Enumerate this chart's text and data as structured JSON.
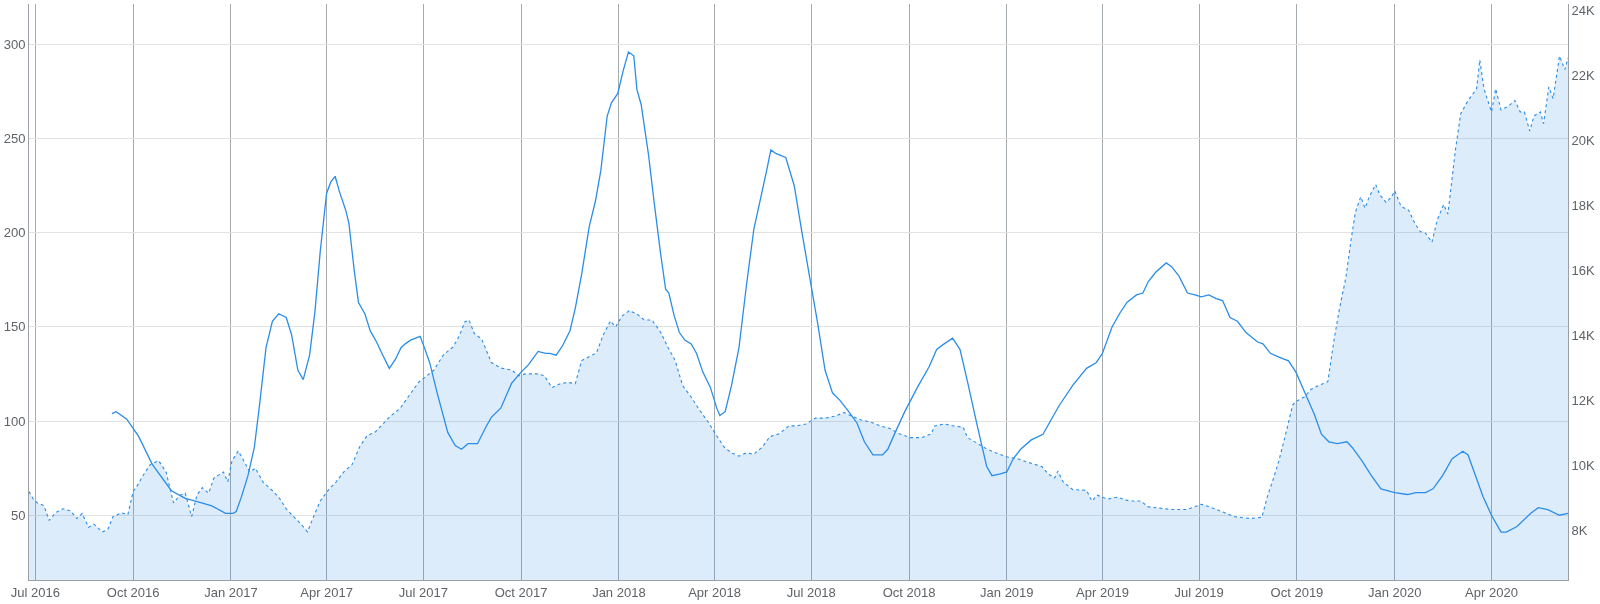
{
  "chart_data": {
    "type": "line",
    "xlim": [
      "2016-06-25",
      "2020-06-12"
    ],
    "xticks": [
      {
        "value": "2016-07-01",
        "label": "Jul 2016"
      },
      {
        "value": "2016-10-01",
        "label": "Oct 2016"
      },
      {
        "value": "2017-01-01",
        "label": "Jan 2017"
      },
      {
        "value": "2017-04-01",
        "label": "Apr 2017"
      },
      {
        "value": "2017-07-01",
        "label": "Jul 2017"
      },
      {
        "value": "2017-10-01",
        "label": "Oct 2017"
      },
      {
        "value": "2018-01-01",
        "label": "Jan 2018"
      },
      {
        "value": "2018-04-01",
        "label": "Apr 2018"
      },
      {
        "value": "2018-07-01",
        "label": "Jul 2018"
      },
      {
        "value": "2018-10-01",
        "label": "Oct 2018"
      },
      {
        "value": "2019-01-01",
        "label": "Jan 2019"
      },
      {
        "value": "2019-04-01",
        "label": "Apr 2019"
      },
      {
        "value": "2019-07-01",
        "label": "Jul 2019"
      },
      {
        "value": "2019-10-01",
        "label": "Oct 2019"
      },
      {
        "value": "2020-01-01",
        "label": "Jan 2020"
      },
      {
        "value": "2020-04-01",
        "label": "Apr 2020"
      }
    ],
    "ylim": [
      15.6,
      321.5
    ],
    "yticks": [
      50,
      100,
      150,
      200,
      250,
      300
    ],
    "y2lim": [
      6470,
      24190
    ],
    "y2ticks": [
      {
        "value": 8000,
        "label": "8K"
      },
      {
        "value": 10000,
        "label": "10K"
      },
      {
        "value": 12000,
        "label": "12K"
      },
      {
        "value": 14000,
        "label": "14K"
      },
      {
        "value": 16000,
        "label": "16K"
      },
      {
        "value": 18000,
        "label": "18K"
      },
      {
        "value": 20000,
        "label": "20K"
      },
      {
        "value": 22000,
        "label": "22K"
      },
      {
        "value": 24000,
        "label": "24K"
      }
    ],
    "grid": true,
    "series": [
      {
        "type": "line",
        "color": "#2b8de8",
        "line_style": "solid",
        "x": [
          "2016-09-11",
          "2016-09-15",
          "2016-09-25",
          "2016-10-06",
          "2016-10-19",
          "2016-11-06",
          "2016-11-19",
          "2016-12-02",
          "2016-12-14",
          "2016-12-27",
          "2017-01-03",
          "2017-01-06",
          "2017-01-11",
          "2017-01-17",
          "2017-01-23",
          "2017-01-28",
          "2017-02-03",
          "2017-02-09",
          "2017-02-15",
          "2017-02-22",
          "2017-02-27",
          "2017-03-05",
          "2017-03-10",
          "2017-03-16",
          "2017-03-21",
          "2017-03-26",
          "2017-04-01",
          "2017-04-05",
          "2017-04-09",
          "2017-04-13",
          "2017-04-19",
          "2017-04-22",
          "2017-04-27",
          "2017-05-01",
          "2017-05-07",
          "2017-05-12",
          "2017-05-18",
          "2017-05-23",
          "2017-05-30",
          "2017-06-05",
          "2017-06-10",
          "2017-06-14",
          "2017-06-19",
          "2017-06-28",
          "2017-07-02",
          "2017-07-07",
          "2017-07-14",
          "2017-07-24",
          "2017-07-31",
          "2017-08-06",
          "2017-08-12",
          "2017-08-21",
          "2017-08-29",
          "2017-09-03",
          "2017-09-12",
          "2017-09-22",
          "2017-10-01",
          "2017-10-08",
          "2017-10-17",
          "2017-10-24",
          "2017-10-28",
          "2017-11-03",
          "2017-11-09",
          "2017-11-16",
          "2017-11-21",
          "2017-11-27",
          "2017-12-04",
          "2017-12-10",
          "2017-12-15",
          "2017-12-21",
          "2017-12-25",
          "2017-12-31",
          "2018-01-05",
          "2018-01-10",
          "2018-01-15",
          "2018-01-18",
          "2018-01-22",
          "2018-01-29",
          "2018-02-03",
          "2018-02-09",
          "2018-02-14",
          "2018-02-17",
          "2018-02-22",
          "2018-02-27",
          "2018-03-04",
          "2018-03-10",
          "2018-03-15",
          "2018-03-21",
          "2018-03-28",
          "2018-04-03",
          "2018-04-06",
          "2018-04-11",
          "2018-04-17",
          "2018-04-24",
          "2018-05-01",
          "2018-05-08",
          "2018-05-15",
          "2018-05-20",
          "2018-05-24",
          "2018-05-29",
          "2018-06-07",
          "2018-06-15",
          "2018-06-22",
          "2018-06-29",
          "2018-07-07",
          "2018-07-14",
          "2018-07-21",
          "2018-07-28",
          "2018-08-04",
          "2018-08-13",
          "2018-08-20",
          "2018-08-28",
          "2018-09-06",
          "2018-09-11",
          "2018-09-18",
          "2018-09-27",
          "2018-10-09",
          "2018-10-20",
          "2018-10-27",
          "2018-11-03",
          "2018-11-11",
          "2018-11-18",
          "2018-11-25",
          "2018-12-04",
          "2018-12-13",
          "2018-12-18",
          "2018-12-26",
          "2019-01-01",
          "2019-01-07",
          "2019-01-14",
          "2019-01-24",
          "2019-02-04",
          "2019-02-19",
          "2019-03-04",
          "2019-03-17",
          "2019-03-26",
          "2019-04-01",
          "2019-04-10",
          "2019-04-17",
          "2019-04-24",
          "2019-05-03",
          "2019-05-09",
          "2019-05-14",
          "2019-05-21",
          "2019-05-31",
          "2019-06-05",
          "2019-06-12",
          "2019-06-20",
          "2019-06-27",
          "2019-07-03",
          "2019-07-10",
          "2019-07-17",
          "2019-07-23",
          "2019-07-30",
          "2019-08-06",
          "2019-08-14",
          "2019-08-25",
          "2019-08-30",
          "2019-09-06",
          "2019-09-14",
          "2019-09-23",
          "2019-09-30",
          "2019-10-10",
          "2019-10-17",
          "2019-10-24",
          "2019-10-31",
          "2019-11-08",
          "2019-11-17",
          "2019-11-22",
          "2019-12-01",
          "2019-12-10",
          "2019-12-19",
          "2020-01-01",
          "2020-01-13",
          "2020-01-21",
          "2020-01-30",
          "2020-02-06",
          "2020-02-15",
          "2020-02-24",
          "2020-03-05",
          "2020-03-10",
          "2020-03-17",
          "2020-03-24",
          "2020-04-01",
          "2020-04-10",
          "2020-04-15",
          "2020-04-25",
          "2020-05-08",
          "2020-05-15",
          "2020-05-24",
          "2020-06-04",
          "2020-06-12"
        ],
        "values": [
          104,
          105,
          101,
          92,
          77,
          63,
          59,
          57,
          55,
          51,
          51,
          52,
          60,
          71,
          86,
          109,
          139,
          153,
          157,
          155,
          146,
          127,
          122,
          135,
          158,
          190,
          221,
          227,
          230,
          222,
          212,
          205,
          180,
          163,
          157,
          148,
          142,
          136,
          128,
          133,
          139,
          141,
          143,
          145,
          139,
          131,
          115,
          94,
          87,
          85,
          88,
          88,
          97,
          102,
          107,
          120,
          126,
          130,
          137,
          136,
          136,
          135,
          140,
          148,
          160,
          178,
          203,
          217,
          233,
          262,
          269,
          274,
          286,
          296,
          294,
          276,
          268,
          241,
          217,
          190,
          170,
          168,
          156,
          147,
          143,
          141,
          136,
          126,
          118,
          107,
          103,
          105,
          119,
          139,
          172,
          202,
          220,
          233,
          244,
          242,
          240,
          225,
          201,
          178,
          152,
          127,
          115,
          111,
          106,
          99,
          89,
          82,
          82,
          85,
          94,
          105,
          118,
          129,
          138,
          141,
          144,
          138,
          121,
          98,
          76,
          71,
          72,
          73,
          80,
          85,
          90,
          93,
          108,
          119,
          128,
          131,
          136,
          150,
          157,
          163,
          167,
          168,
          174,
          179,
          184,
          182,
          177,
          168,
          167,
          166,
          167,
          165,
          164,
          155,
          153,
          147,
          142,
          141,
          136,
          134,
          132,
          126,
          113,
          104,
          93,
          89,
          88,
          89,
          86,
          79,
          71,
          64,
          62,
          61,
          62,
          62,
          64,
          71,
          80,
          84,
          82,
          71,
          60,
          50,
          41,
          41,
          44,
          51,
          54,
          53,
          50,
          51
        ]
      },
      {
        "type": "area",
        "axis": "y2",
        "color": "#2b8de8",
        "line_style": "dotted",
        "x": [
          "2016-06-25",
          "2016-06-29",
          "2016-07-03",
          "2016-07-09",
          "2016-07-14",
          "2016-07-20",
          "2016-07-27",
          "2016-08-03",
          "2016-08-09",
          "2016-08-14",
          "2016-08-20",
          "2016-08-25",
          "2016-09-02",
          "2016-09-07",
          "2016-09-12",
          "2016-09-20",
          "2016-09-26",
          "2016-10-01",
          "2016-10-06",
          "2016-10-10",
          "2016-10-17",
          "2016-10-25",
          "2016-11-01",
          "2016-11-08",
          "2016-11-14",
          "2016-11-19",
          "2016-11-25",
          "2016-11-30",
          "2016-12-05",
          "2016-12-11",
          "2016-12-16",
          "2016-12-25",
          "2016-12-29",
          "2017-01-02",
          "2017-01-08",
          "2017-01-13",
          "2017-01-19",
          "2017-01-24",
          "2017-01-31",
          "2017-02-08",
          "2017-02-15",
          "2017-02-22",
          "2017-03-01",
          "2017-03-08",
          "2017-03-14",
          "2017-03-19",
          "2017-03-26",
          "2017-04-03",
          "2017-04-10",
          "2017-04-17",
          "2017-04-25",
          "2017-05-02",
          "2017-05-09",
          "2017-05-17",
          "2017-05-24",
          "2017-05-31",
          "2017-06-09",
          "2017-06-18",
          "2017-06-27",
          "2017-07-02",
          "2017-07-11",
          "2017-07-20",
          "2017-07-29",
          "2017-08-04",
          "2017-08-09",
          "2017-08-13",
          "2017-08-18",
          "2017-08-25",
          "2017-09-03",
          "2017-09-12",
          "2017-09-22",
          "2017-09-29",
          "2017-10-05",
          "2017-10-17",
          "2017-10-23",
          "2017-10-30",
          "2017-11-07",
          "2017-11-14",
          "2017-11-21",
          "2017-11-27",
          "2017-12-04",
          "2017-12-11",
          "2017-12-17",
          "2017-12-24",
          "2017-12-29",
          "2018-01-04",
          "2018-01-11",
          "2018-01-18",
          "2018-01-25",
          "2018-02-01",
          "2018-02-09",
          "2018-02-16",
          "2018-02-23",
          "2018-03-02",
          "2018-03-10",
          "2018-03-17",
          "2018-03-26",
          "2018-04-03",
          "2018-04-10",
          "2018-04-17",
          "2018-04-24",
          "2018-05-01",
          "2018-05-08",
          "2018-05-16",
          "2018-05-23",
          "2018-06-01",
          "2018-06-10",
          "2018-06-17",
          "2018-06-26",
          "2018-07-05",
          "2018-07-14",
          "2018-07-23",
          "2018-08-01",
          "2018-08-08",
          "2018-08-17",
          "2018-08-26",
          "2018-09-04",
          "2018-09-13",
          "2018-09-22",
          "2018-10-02",
          "2018-10-13",
          "2018-10-22",
          "2018-10-25",
          "2018-11-03",
          "2018-11-12",
          "2018-11-21",
          "2018-11-25",
          "2018-12-04",
          "2018-12-13",
          "2018-12-22",
          "2019-01-01",
          "2019-01-11",
          "2019-01-22",
          "2019-02-03",
          "2019-02-09",
          "2019-02-15",
          "2019-02-18",
          "2019-02-23",
          "2019-03-04",
          "2019-03-17",
          "2019-03-22",
          "2019-03-27",
          "2019-04-06",
          "2019-04-15",
          "2019-04-26",
          "2019-05-07",
          "2019-05-14",
          "2019-05-25",
          "2019-06-05",
          "2019-06-20",
          "2019-07-03",
          "2019-07-14",
          "2019-07-25",
          "2019-08-03",
          "2019-08-18",
          "2019-08-29",
          "2019-09-03",
          "2019-09-09",
          "2019-09-14",
          "2019-09-20",
          "2019-09-27",
          "2019-10-01",
          "2019-10-08",
          "2019-10-14",
          "2019-10-21",
          "2019-10-30",
          "2019-11-05",
          "2019-11-10",
          "2019-11-16",
          "2019-11-21",
          "2019-11-25",
          "2019-11-30",
          "2019-12-04",
          "2019-12-08",
          "2019-12-14",
          "2019-12-18",
          "2019-12-24",
          "2019-12-29",
          "2020-01-01",
          "2020-01-07",
          "2020-01-14",
          "2020-01-20",
          "2020-01-25",
          "2020-01-30",
          "2020-02-05",
          "2020-02-10",
          "2020-02-16",
          "2020-02-20",
          "2020-02-27",
          "2020-03-03",
          "2020-03-10",
          "2020-03-18",
          "2020-03-21",
          "2020-03-25",
          "2020-04-01",
          "2020-04-05",
          "2020-04-10",
          "2020-04-17",
          "2020-04-23",
          "2020-04-28",
          "2020-05-02",
          "2020-05-07",
          "2020-05-11",
          "2020-05-17",
          "2020-05-20",
          "2020-05-25",
          "2020-05-29",
          "2020-06-04",
          "2020-06-09",
          "2020-06-12"
        ],
        "values": [
          9190,
          8960,
          8840,
          8760,
          8300,
          8540,
          8660,
          8600,
          8360,
          8520,
          8090,
          8190,
          7950,
          8010,
          8420,
          8540,
          8480,
          9190,
          9430,
          9670,
          10020,
          10140,
          9790,
          8840,
          9080,
          9140,
          8420,
          9080,
          9310,
          9140,
          9610,
          9790,
          9490,
          10140,
          10440,
          10140,
          9790,
          9910,
          9490,
          9250,
          9020,
          8660,
          8420,
          8190,
          7950,
          8360,
          8900,
          9250,
          9490,
          9790,
          10020,
          10560,
          10910,
          11030,
          11270,
          11510,
          11740,
          12160,
          12570,
          12690,
          12930,
          13400,
          13640,
          13990,
          14410,
          14470,
          14050,
          13880,
          13160,
          12990,
          12930,
          12750,
          12810,
          12810,
          12750,
          12390,
          12510,
          12550,
          12510,
          13220,
          13340,
          13460,
          13990,
          14440,
          14260,
          14590,
          14760,
          14650,
          14470,
          14470,
          14110,
          13640,
          13220,
          12450,
          12100,
          11740,
          11330,
          10910,
          10560,
          10380,
          10280,
          10380,
          10340,
          10560,
          10880,
          10970,
          11210,
          11210,
          11270,
          11450,
          11450,
          11510,
          11620,
          11510,
          11390,
          11330,
          11210,
          11130,
          10970,
          10850,
          10850,
          10970,
          11210,
          11270,
          11210,
          11170,
          10850,
          10680,
          10500,
          10380,
          10260,
          10200,
          10080,
          9960,
          9730,
          9610,
          9820,
          9490,
          9250,
          9230,
          8900,
          9080,
          8960,
          9020,
          8900,
          8900,
          8720,
          8680,
          8640,
          8640,
          8800,
          8680,
          8540,
          8420,
          8360,
          8400,
          9020,
          9610,
          10140,
          10910,
          11860,
          11980,
          12100,
          12330,
          12450,
          12570,
          13880,
          14820,
          15770,
          16960,
          17790,
          18260,
          17910,
          18260,
          18640,
          18320,
          18080,
          18260,
          18440,
          17960,
          17850,
          17430,
          17190,
          17140,
          16860,
          17550,
          18020,
          17730,
          19680,
          20810,
          21220,
          21580,
          22470,
          21580,
          20870,
          21580,
          20930,
          21050,
          21220,
          20870,
          20870,
          20280,
          20750,
          20870,
          20510,
          21640,
          21280,
          22590,
          22170,
          22530
        ]
      }
    ]
  }
}
